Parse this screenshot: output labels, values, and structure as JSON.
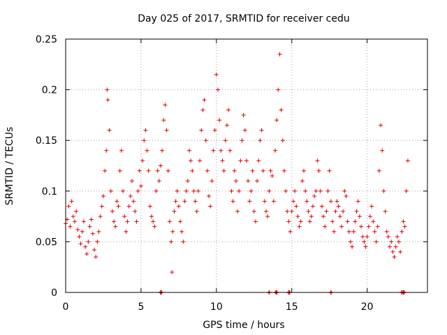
{
  "chart_data": {
    "type": "scatter",
    "title": "Day 025 of 2017, SRMTID for receiver cedu",
    "xlabel": "GPS time / hours",
    "ylabel": "SRMTID / TECUs",
    "xlim": [
      0,
      24
    ],
    "ylim": [
      0,
      0.25
    ],
    "xticks": [
      0,
      5,
      10,
      15,
      20
    ],
    "xtick_labels": [
      "0",
      "5",
      "10",
      "15",
      "20"
    ],
    "yticks": [
      0,
      0.05,
      0.1,
      0.15,
      0.2,
      0.25
    ],
    "ytick_labels": [
      "0",
      "0.05",
      "0.1",
      "0.15",
      "0.2",
      "0.25"
    ],
    "grid": true,
    "marker": "plus",
    "series": [
      {
        "name": "SRMTID",
        "color": "#e00000",
        "points": [
          [
            0.0,
            0.068
          ],
          [
            0.1,
            0.072
          ],
          [
            0.2,
            0.085
          ],
          [
            0.3,
            0.065
          ],
          [
            0.4,
            0.09
          ],
          [
            0.5,
            0.075
          ],
          [
            0.6,
            0.07
          ],
          [
            0.7,
            0.08
          ],
          [
            0.8,
            0.062
          ],
          [
            0.9,
            0.055
          ],
          [
            1.0,
            0.048
          ],
          [
            1.1,
            0.06
          ],
          [
            1.2,
            0.07
          ],
          [
            1.3,
            0.045
          ],
          [
            1.4,
            0.038
          ],
          [
            1.5,
            0.05
          ],
          [
            1.6,
            0.065
          ],
          [
            1.7,
            0.072
          ],
          [
            1.8,
            0.058
          ],
          [
            1.9,
            0.042
          ],
          [
            2.0,
            0.035
          ],
          [
            2.1,
            0.05
          ],
          [
            2.2,
            0.06
          ],
          [
            2.3,
            0.075
          ],
          [
            2.4,
            0.085
          ],
          [
            2.5,
            0.095
          ],
          [
            2.6,
            0.12
          ],
          [
            2.7,
            0.14
          ],
          [
            2.75,
            0.2
          ],
          [
            2.8,
            0.19
          ],
          [
            2.9,
            0.16
          ],
          [
            3.0,
            0.1
          ],
          [
            3.1,
            0.08
          ],
          [
            3.2,
            0.07
          ],
          [
            3.3,
            0.065
          ],
          [
            3.4,
            0.09
          ],
          [
            3.5,
            0.085
          ],
          [
            3.6,
            0.12
          ],
          [
            3.7,
            0.14
          ],
          [
            3.8,
            0.1
          ],
          [
            3.9,
            0.075
          ],
          [
            4.0,
            0.06
          ],
          [
            4.1,
            0.07
          ],
          [
            4.2,
            0.085
          ],
          [
            4.3,
            0.095
          ],
          [
            4.4,
            0.11
          ],
          [
            4.5,
            0.09
          ],
          [
            4.6,
            0.08
          ],
          [
            4.7,
            0.07
          ],
          [
            4.8,
            0.1
          ],
          [
            4.9,
            0.12
          ],
          [
            5.0,
            0.105
          ],
          [
            5.1,
            0.13
          ],
          [
            5.2,
            0.15
          ],
          [
            5.3,
            0.16
          ],
          [
            5.4,
            0.14
          ],
          [
            5.5,
            0.12
          ],
          [
            5.6,
            0.085
          ],
          [
            5.7,
            0.075
          ],
          [
            5.8,
            0.07
          ],
          [
            5.9,
            0.065
          ],
          [
            6.0,
            0.1
          ],
          [
            6.1,
            0.12
          ],
          [
            6.2,
            0.11
          ],
          [
            6.3,
            0.125
          ],
          [
            6.4,
            0.14
          ],
          [
            6.5,
            0.17
          ],
          [
            6.6,
            0.185
          ],
          [
            6.7,
            0.16
          ],
          [
            6.8,
            0.12
          ],
          [
            6.9,
            0.07
          ],
          [
            7.0,
            0.05
          ],
          [
            7.05,
            0.02
          ],
          [
            7.1,
            0.06
          ],
          [
            7.2,
            0.08
          ],
          [
            7.3,
            0.09
          ],
          [
            7.4,
            0.1
          ],
          [
            7.5,
            0.085
          ],
          [
            7.6,
            0.07
          ],
          [
            7.7,
            0.06
          ],
          [
            7.8,
            0.05
          ],
          [
            7.9,
            0.09
          ],
          [
            8.0,
            0.1
          ],
          [
            8.1,
            0.11
          ],
          [
            8.2,
            0.14
          ],
          [
            8.3,
            0.13
          ],
          [
            8.4,
            0.12
          ],
          [
            8.5,
            0.1
          ],
          [
            8.6,
            0.09
          ],
          [
            8.7,
            0.08
          ],
          [
            8.8,
            0.1
          ],
          [
            8.9,
            0.13
          ],
          [
            9.0,
            0.16
          ],
          [
            9.1,
            0.18
          ],
          [
            9.2,
            0.19
          ],
          [
            9.3,
            0.15
          ],
          [
            9.4,
            0.12
          ],
          [
            9.5,
            0.095
          ],
          [
            9.6,
            0.085
          ],
          [
            9.7,
            0.11
          ],
          [
            9.8,
            0.14
          ],
          [
            9.9,
            0.16
          ],
          [
            10.0,
            0.215
          ],
          [
            10.1,
            0.2
          ],
          [
            10.2,
            0.17
          ],
          [
            10.3,
            0.14
          ],
          [
            10.4,
            0.13
          ],
          [
            10.5,
            0.12
          ],
          [
            10.6,
            0.15
          ],
          [
            10.7,
            0.165
          ],
          [
            10.8,
            0.18
          ],
          [
            10.9,
            0.14
          ],
          [
            11.0,
            0.1
          ],
          [
            11.1,
            0.09
          ],
          [
            11.2,
            0.12
          ],
          [
            11.3,
            0.11
          ],
          [
            11.4,
            0.08
          ],
          [
            11.5,
            0.1
          ],
          [
            11.6,
            0.13
          ],
          [
            11.7,
            0.15
          ],
          [
            11.8,
            0.175
          ],
          [
            11.9,
            0.16
          ],
          [
            12.0,
            0.13
          ],
          [
            12.1,
            0.11
          ],
          [
            12.2,
            0.09
          ],
          [
            12.3,
            0.1
          ],
          [
            12.4,
            0.12
          ],
          [
            12.5,
            0.08
          ],
          [
            12.6,
            0.07
          ],
          [
            12.7,
            0.11
          ],
          [
            12.8,
            0.13
          ],
          [
            12.9,
            0.15
          ],
          [
            13.0,
            0.16
          ],
          [
            13.1,
            0.12
          ],
          [
            13.2,
            0.09
          ],
          [
            13.3,
            0.08
          ],
          [
            13.4,
            0.075
          ],
          [
            13.5,
            0.1
          ],
          [
            13.6,
            0.12
          ],
          [
            13.7,
            0.115
          ],
          [
            13.8,
            0.09
          ],
          [
            13.9,
            0.14
          ],
          [
            14.0,
            0.17
          ],
          [
            14.1,
            0.2
          ],
          [
            14.2,
            0.235
          ],
          [
            14.3,
            0.18
          ],
          [
            14.4,
            0.15
          ],
          [
            14.5,
            0.12
          ],
          [
            14.6,
            0.1
          ],
          [
            14.7,
            0.08
          ],
          [
            14.8,
            0.07
          ],
          [
            14.9,
            0.06
          ],
          [
            15.0,
            0.08
          ],
          [
            15.1,
            0.09
          ],
          [
            15.2,
            0.1
          ],
          [
            15.3,
            0.085
          ],
          [
            15.4,
            0.075
          ],
          [
            15.5,
            0.065
          ],
          [
            15.6,
            0.07
          ],
          [
            15.7,
            0.11
          ],
          [
            15.8,
            0.12
          ],
          [
            15.9,
            0.1
          ],
          [
            16.0,
            0.09
          ],
          [
            16.1,
            0.08
          ],
          [
            16.2,
            0.07
          ],
          [
            16.3,
            0.075
          ],
          [
            16.4,
            0.085
          ],
          [
            16.5,
            0.095
          ],
          [
            16.6,
            0.1
          ],
          [
            16.7,
            0.13
          ],
          [
            16.8,
            0.12
          ],
          [
            16.9,
            0.1
          ],
          [
            17.0,
            0.085
          ],
          [
            17.1,
            0.075
          ],
          [
            17.2,
            0.065
          ],
          [
            17.3,
            0.08
          ],
          [
            17.4,
            0.1
          ],
          [
            17.5,
            0.12
          ],
          [
            17.6,
            0.09
          ],
          [
            17.7,
            0.07
          ],
          [
            17.8,
            0.06
          ],
          [
            17.9,
            0.08
          ],
          [
            18.0,
            0.09
          ],
          [
            18.1,
            0.085
          ],
          [
            18.2,
            0.075
          ],
          [
            18.3,
            0.065
          ],
          [
            18.4,
            0.08
          ],
          [
            18.5,
            0.1
          ],
          [
            18.6,
            0.095
          ],
          [
            18.7,
            0.07
          ],
          [
            18.8,
            0.06
          ],
          [
            18.9,
            0.05
          ],
          [
            19.0,
            0.045
          ],
          [
            19.1,
            0.06
          ],
          [
            19.2,
            0.07
          ],
          [
            19.3,
            0.08
          ],
          [
            19.4,
            0.09
          ],
          [
            19.5,
            0.075
          ],
          [
            19.6,
            0.065
          ],
          [
            19.7,
            0.055
          ],
          [
            19.8,
            0.05
          ],
          [
            19.9,
            0.045
          ],
          [
            20.0,
            0.055
          ],
          [
            20.1,
            0.065
          ],
          [
            20.2,
            0.075
          ],
          [
            20.3,
            0.085
          ],
          [
            20.4,
            0.07
          ],
          [
            20.5,
            0.06
          ],
          [
            20.6,
            0.05
          ],
          [
            20.7,
            0.065
          ],
          [
            20.8,
            0.12
          ],
          [
            20.9,
            0.165
          ],
          [
            21.0,
            0.14
          ],
          [
            21.1,
            0.1
          ],
          [
            21.2,
            0.08
          ],
          [
            21.3,
            0.06
          ],
          [
            21.4,
            0.055
          ],
          [
            21.5,
            0.045
          ],
          [
            21.6,
            0.05
          ],
          [
            21.7,
            0.04
          ],
          [
            21.8,
            0.035
          ],
          [
            21.9,
            0.045
          ],
          [
            22.0,
            0.055
          ],
          [
            22.1,
            0.05
          ],
          [
            22.2,
            0.04
          ],
          [
            22.3,
            0.06
          ],
          [
            22.4,
            0.07
          ],
          [
            22.5,
            0.065
          ],
          [
            22.6,
            0.1
          ],
          [
            22.7,
            0.13
          ]
        ],
        "zero_points": [
          6.3,
          6.35,
          13.5,
          13.95,
          14.0,
          14.8,
          14.85,
          17.6,
          22.3,
          22.4,
          22.45
        ]
      }
    ]
  }
}
